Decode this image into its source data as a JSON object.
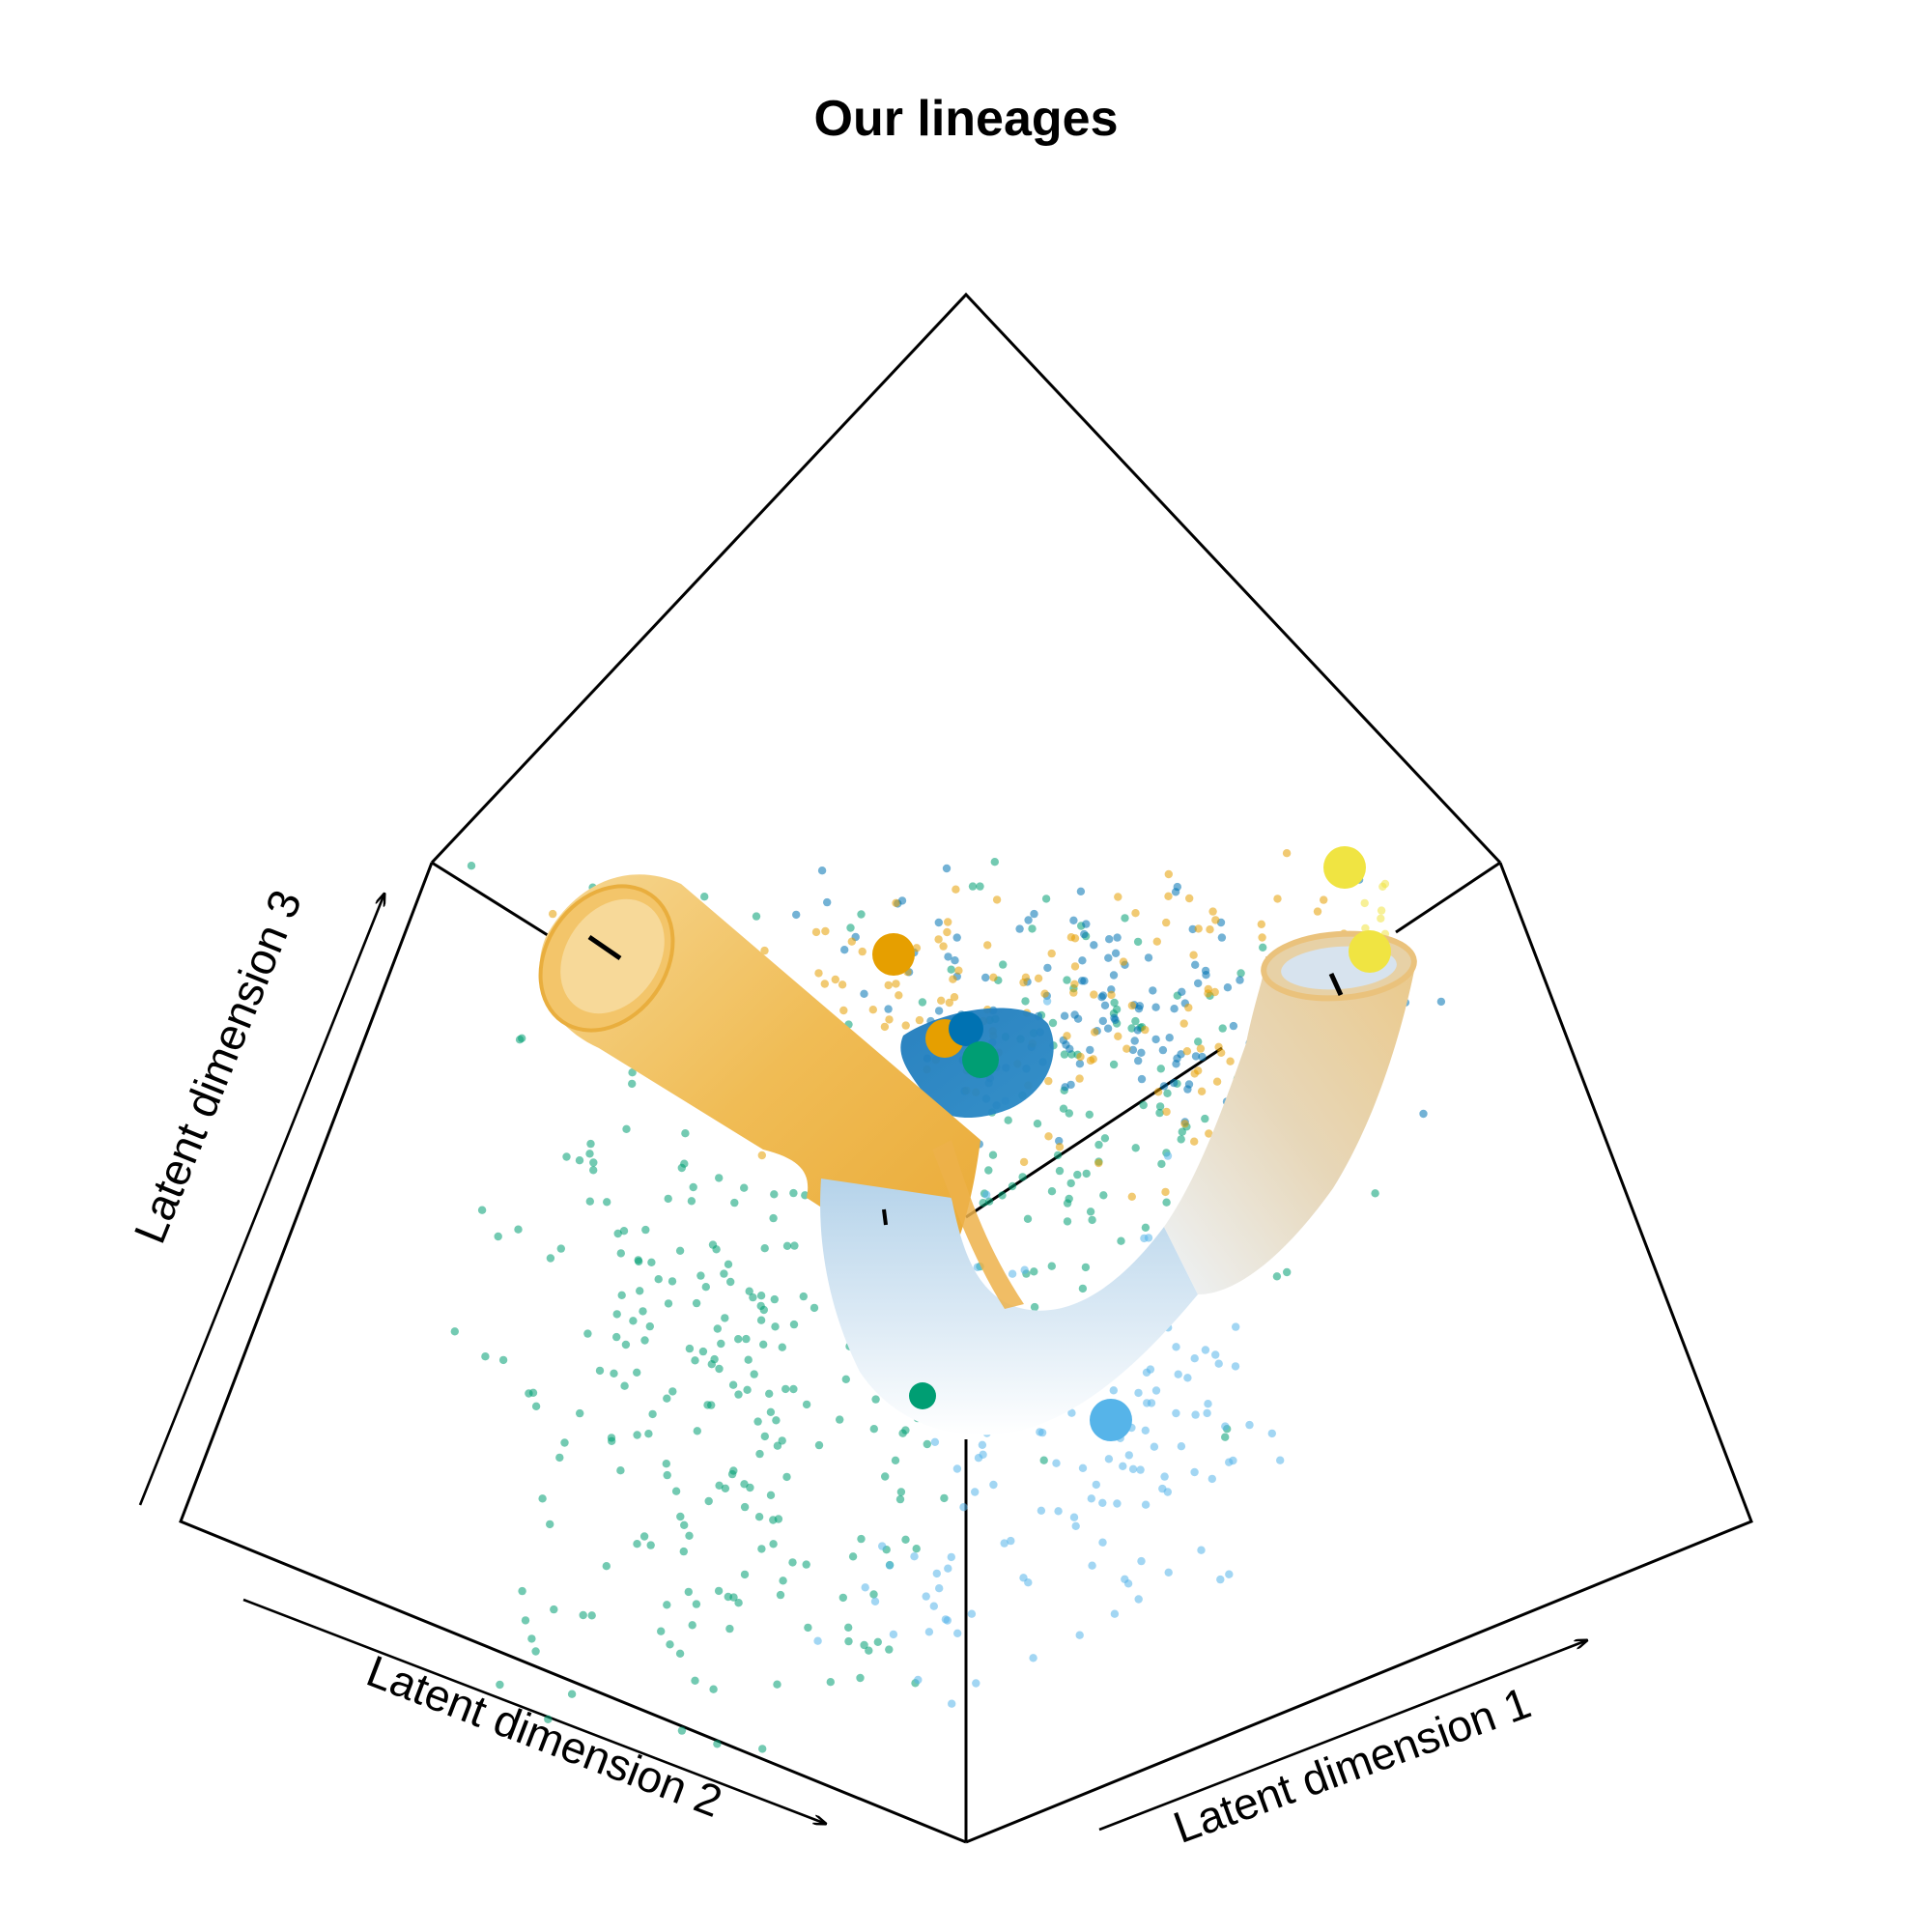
{
  "chart_data": {
    "type": "scatter",
    "subtype": "3d-scatter-with-lineage-tubes",
    "title": "Our lineages",
    "axes": {
      "x": {
        "label": "Latent dimension 1"
      },
      "y": {
        "label": "Latent dimension 2"
      },
      "z": {
        "label": "Latent dimension 3"
      }
    },
    "grid": false,
    "legend": "none",
    "colors": {
      "orange": "#E69F00",
      "tube_orange": "#F0B84A",
      "dark_blue": "#0072B2",
      "sky_blue": "#56B4E9",
      "green": "#009E73",
      "yellow": "#F0E442",
      "tube_light": "#F2F7FB"
    },
    "cell_clusters": [
      {
        "color": "green",
        "approx_points": 420
      },
      {
        "color": "dark_blue",
        "approx_points": 160
      },
      {
        "color": "orange",
        "approx_points": 170
      },
      {
        "color": "sky_blue",
        "approx_points": 150
      },
      {
        "color": "yellow",
        "approx_points": 8
      }
    ],
    "cluster_centers": [
      "orange",
      "orange",
      "dark_blue",
      "green",
      "green",
      "sky_blue",
      "yellow",
      "yellow"
    ],
    "lineages": [
      {
        "from": "sky_blue",
        "via": "green",
        "to": "orange",
        "tube_color": [
          "sky_blue",
          "orange"
        ]
      },
      {
        "from": "sky_blue",
        "via": "green",
        "to": "yellow",
        "tube_color": [
          "sky_blue",
          "orange"
        ]
      },
      {
        "from": "green",
        "to": "dark_blue",
        "tube_color": [
          "dark_blue"
        ]
      }
    ]
  }
}
